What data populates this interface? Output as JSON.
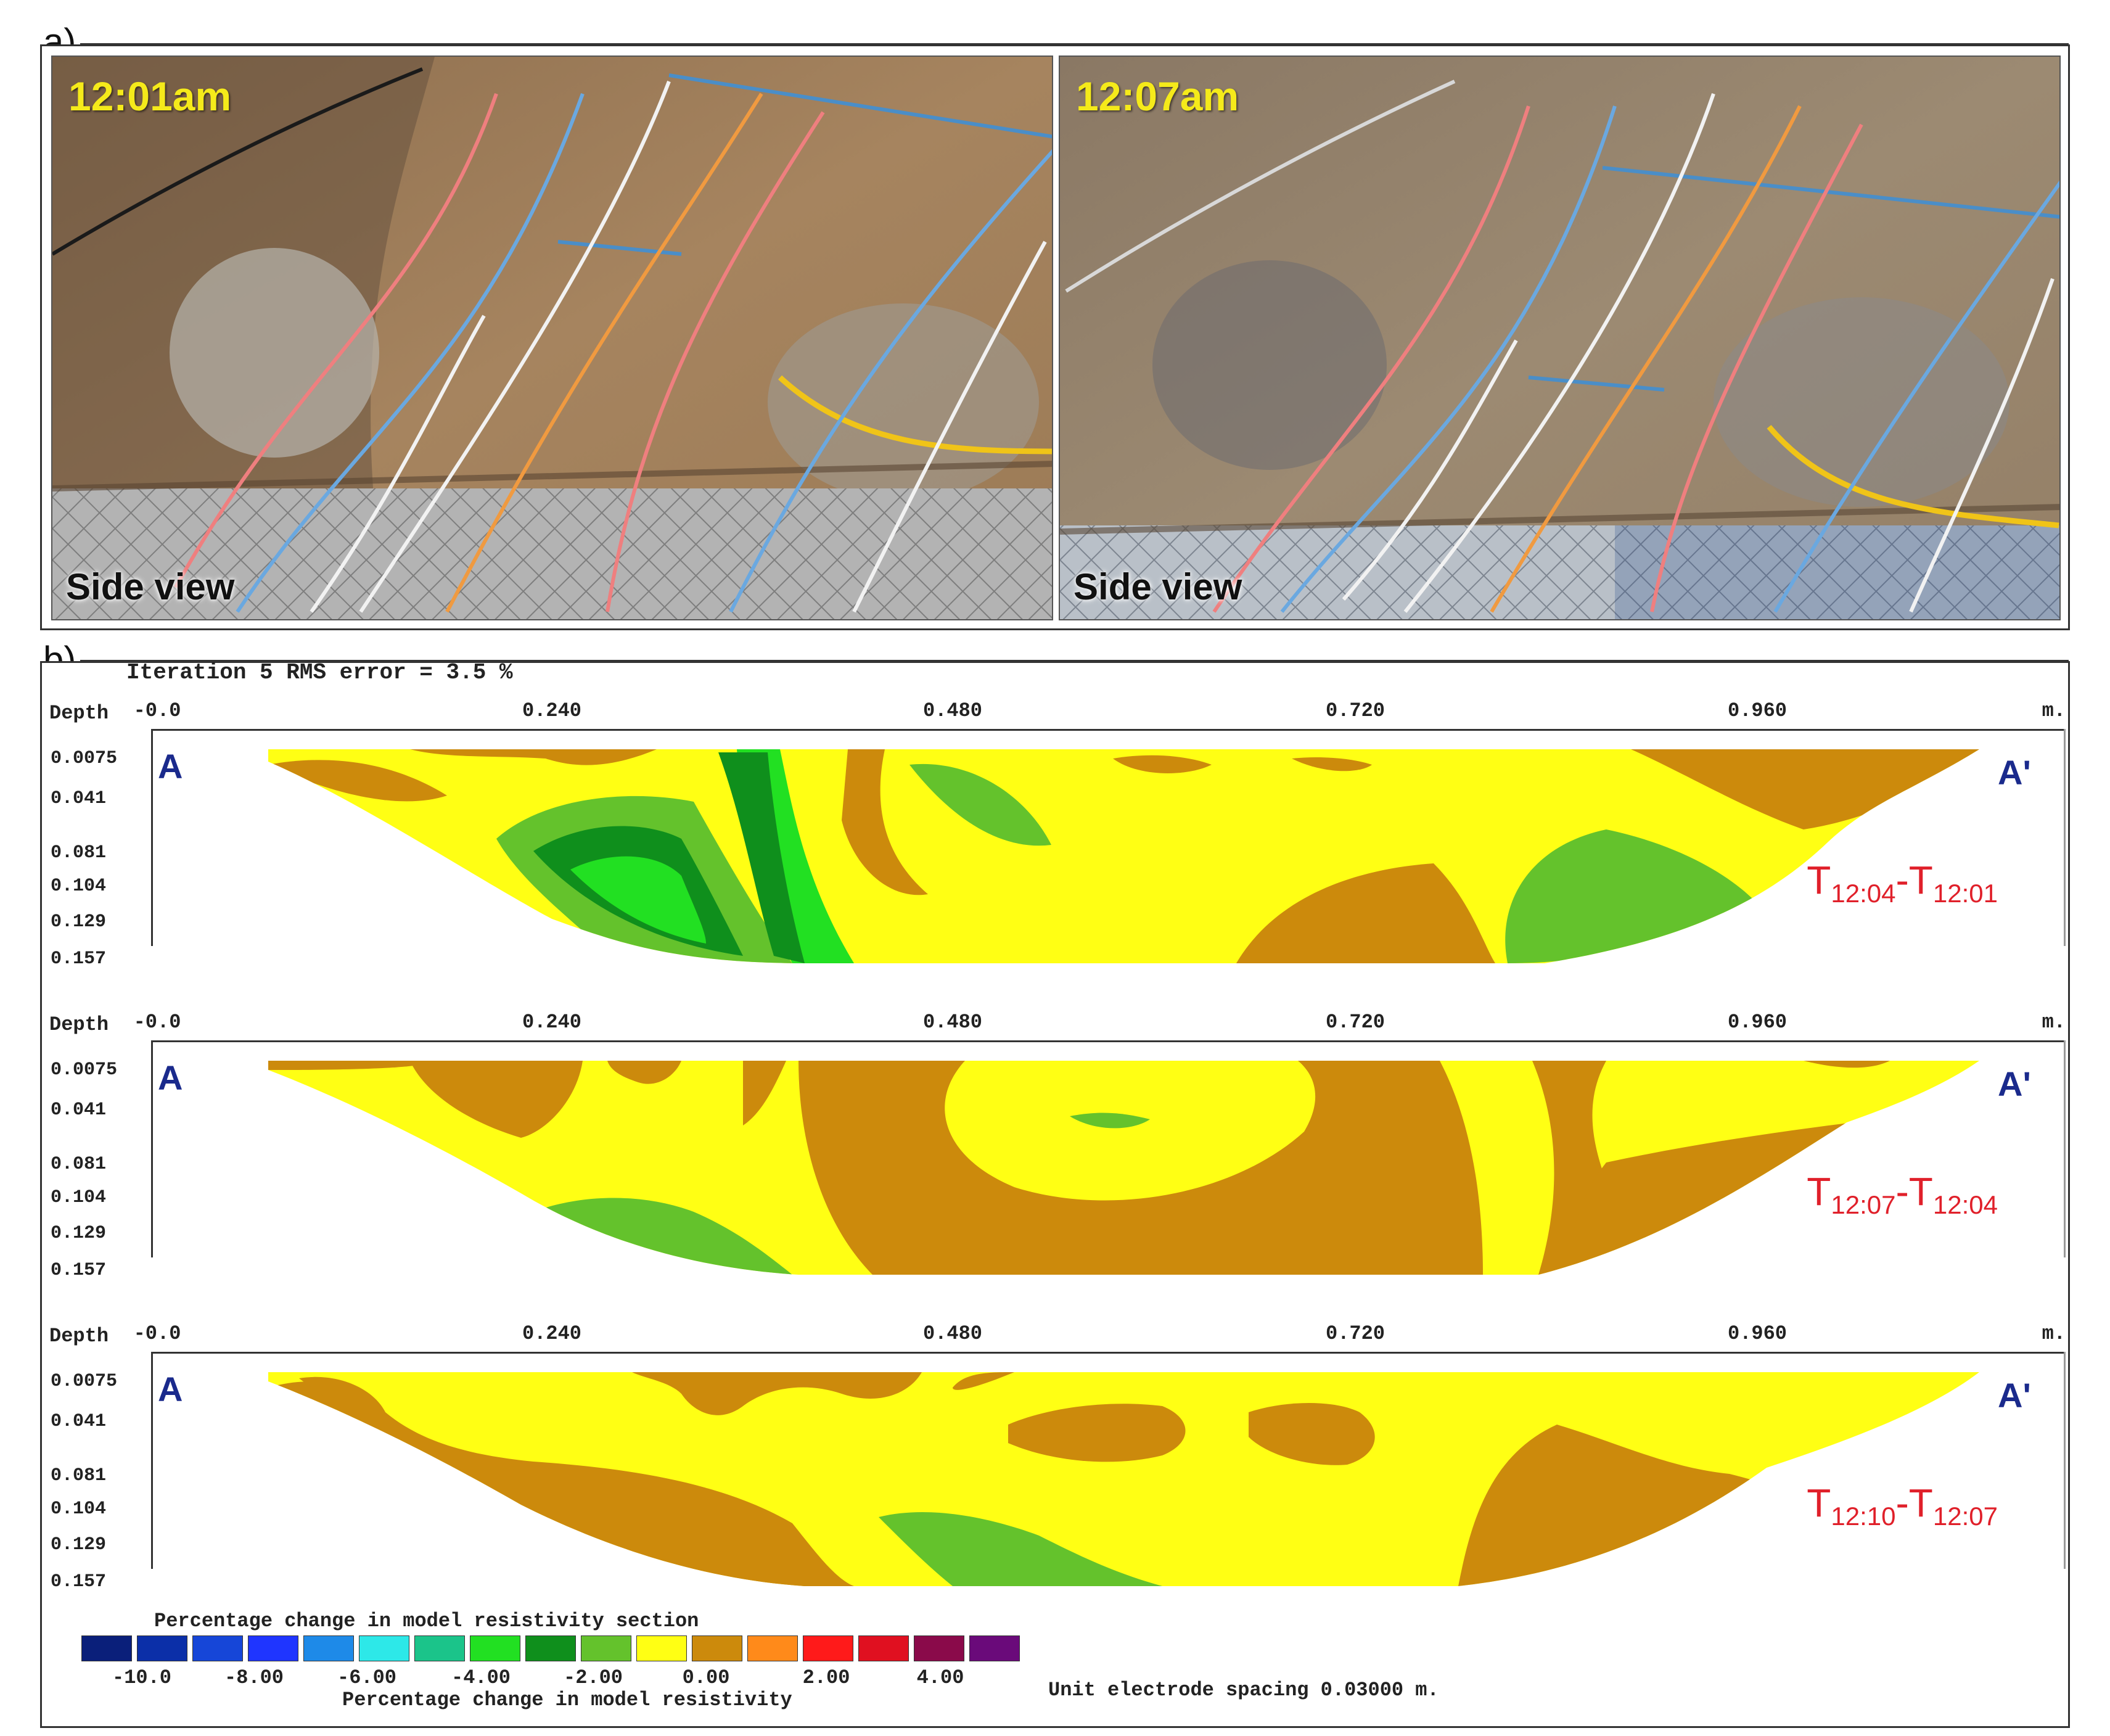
{
  "panel_a": {
    "label": "a)",
    "left_photo": {
      "time": "12:01am",
      "caption": "Side view"
    },
    "right_photo": {
      "time": "12:07am",
      "caption": "Side view"
    }
  },
  "panel_b": {
    "label": "b)",
    "iteration_text": "Iteration 5 RMS error = 3.5 %",
    "depth_label": "Depth",
    "x_unit": "m.",
    "x_ticks": [
      "-0.0",
      "0.240",
      "0.480",
      "0.720",
      "0.960"
    ],
    "y_ticks": [
      "0.0075",
      "0.041",
      "0.081",
      "0.104",
      "0.129",
      "0.157"
    ],
    "section_start_label": "A",
    "section_end_label": "A'",
    "sections": [
      {
        "from": "12:04",
        "to": "12:01"
      },
      {
        "from": "12:07",
        "to": "12:04"
      },
      {
        "from": "12:10",
        "to": "12:07"
      }
    ]
  },
  "legend": {
    "title": "Percentage change in model resistivity section",
    "subtitle": "Percentage change in model resistivity",
    "tick_labels": [
      "-10.0",
      "-8.00",
      "-6.00",
      "-4.00",
      "-2.00",
      "0.00",
      "2.00",
      "4.00"
    ],
    "colors": [
      "#0a1f7a",
      "#0b2fa8",
      "#1646d8",
      "#1f35ff",
      "#1e8ae8",
      "#2de8e8",
      "#1bc48a",
      "#22e022",
      "#0f8f1c",
      "#64c22c",
      "#ffff14",
      "#cc8a0c",
      "#ff8a1a",
      "#ff1a1a",
      "#e01020",
      "#8a0a4a",
      "#6a0a7a"
    ],
    "spacing_text": "Unit electrode spacing 0.03000 m."
  },
  "chart_data": {
    "type": "heatmap",
    "title": "Iteration 5 RMS error = 3.5 %",
    "xlabel": "",
    "ylabel": "Depth",
    "x_unit": "m.",
    "xlim": [
      0,
      1.08
    ],
    "ylim": [
      0.157,
      0.0075
    ],
    "x_ticks": [
      0,
      0.24,
      0.48,
      0.72,
      0.96
    ],
    "y_ticks": [
      0.0075,
      0.041,
      0.081,
      0.104,
      0.129,
      0.157
    ],
    "colorbar_label": "Percentage change in model resistivity",
    "colorbar_ticks": [
      -10,
      -8,
      -6,
      -4,
      -2,
      0,
      2,
      4
    ],
    "panels": [
      "T(12:04)-T(12:01)",
      "T(12:07)-T(12:04)",
      "T(12:10)-T(12:07)"
    ]
  }
}
